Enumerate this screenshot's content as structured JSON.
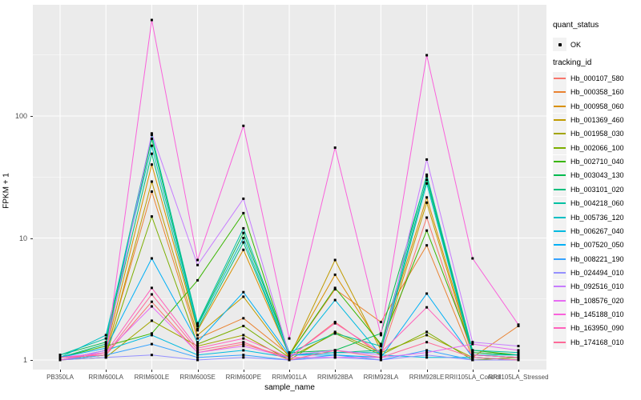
{
  "axes": {
    "y_title": "FPKM + 1",
    "x_title": "sample_name",
    "y_tick_labels": [
      "1",
      "10",
      "100"
    ]
  },
  "legend": {
    "quant_status_title": "quant_status",
    "quant_status_items": [
      {
        "label": "OK",
        "marker": "black-point"
      }
    ],
    "tracking_title": "tracking_id"
  },
  "style": {
    "panel_background": "#EBEBEB",
    "gridline_color": "#FFFFFF",
    "tick_label_color": "#4D4D4D",
    "point_color": "#000000",
    "legend_key_background": "#F2F2F2"
  },
  "chart_data": {
    "type": "line",
    "title": "",
    "xlabel": "sample_name",
    "ylabel": "FPKM + 1",
    "y_scale": "log10",
    "y_ticks": [
      1,
      10,
      100
    ],
    "ylim": [
      0.83,
      818
    ],
    "grid": "major-white, minor-white on grey panel",
    "legend_position": "right",
    "x_categories": [
      "PB350LA",
      "RRIM600LA",
      "RRIM600LE",
      "RRIM600SE",
      "RRIM600PE",
      "RRIM901LA",
      "RRIM928BA",
      "RRIM928LA",
      "RRIM928LE",
      "RRII105LA_Control",
      "RRII105LA_Stressed"
    ],
    "series": [
      {
        "name": "Hb_000107_580",
        "color": "#F8766D",
        "values": [
          1.05,
          1.1,
          3.0,
          1.15,
          1.35,
          1.05,
          2.05,
          1.1,
          14.7,
          1.1,
          1.05
        ]
      },
      {
        "name": "Hb_000358_160",
        "color": "#EA8331",
        "values": [
          1.0,
          1.15,
          24,
          1.5,
          2.2,
          1.1,
          3.8,
          2.05,
          8.7,
          1.05,
          1.9
        ]
      },
      {
        "name": "Hb_000958_060",
        "color": "#D89000",
        "values": [
          1.0,
          1.2,
          40,
          1.75,
          8.0,
          1.1,
          5.0,
          1.3,
          21.5,
          1.15,
          1.1
        ]
      },
      {
        "name": "Hb_001369_460",
        "color": "#C09B00",
        "values": [
          1.0,
          1.1,
          29,
          1.6,
          3.3,
          1.05,
          6.6,
          1.2,
          19.5,
          1.1,
          1.05
        ]
      },
      {
        "name": "Hb_001958_030",
        "color": "#A3A500",
        "values": [
          1.0,
          1.05,
          2.1,
          1.3,
          1.6,
          1.0,
          1.7,
          1.15,
          1.6,
          1.05,
          1.0
        ]
      },
      {
        "name": "Hb_002066_100",
        "color": "#7CAE00",
        "values": [
          1.0,
          1.1,
          15,
          1.35,
          1.9,
          1.05,
          1.65,
          1.1,
          1.7,
          1.0,
          1.05
        ]
      },
      {
        "name": "Hb_002710_040",
        "color": "#39B600",
        "values": [
          1.05,
          1.3,
          1.65,
          4.5,
          16,
          1.1,
          3.9,
          1.35,
          11.5,
          1.2,
          1.1
        ]
      },
      {
        "name": "Hb_003043_130",
        "color": "#00BB4E",
        "values": [
          1.1,
          1.4,
          65,
          1.95,
          11,
          1.15,
          1.2,
          1.65,
          32,
          1.15,
          1.1
        ]
      },
      {
        "name": "Hb_003101_020",
        "color": "#00BF7D",
        "values": [
          1.05,
          1.35,
          49,
          1.8,
          9.2,
          1.1,
          1.15,
          1.2,
          30,
          1.1,
          1.05
        ]
      },
      {
        "name": "Hb_004218_060",
        "color": "#00C1A3",
        "values": [
          1.1,
          1.5,
          70,
          2.0,
          12,
          1.15,
          1.65,
          1.3,
          33,
          1.2,
          1.15
        ]
      },
      {
        "name": "Hb_005736_120",
        "color": "#00BFC4",
        "values": [
          1.05,
          1.6,
          57,
          1.9,
          10,
          1.1,
          1.15,
          1.15,
          28,
          1.1,
          1.1
        ]
      },
      {
        "name": "Hb_006267_040",
        "color": "#00BAE0",
        "values": [
          1.0,
          1.2,
          1.6,
          1.1,
          1.2,
          1.05,
          3.1,
          1.1,
          1.05,
          1.05,
          1.0
        ]
      },
      {
        "name": "Hb_007520_050",
        "color": "#00B0F6",
        "values": [
          1.05,
          1.25,
          6.8,
          1.4,
          3.6,
          1.1,
          1.1,
          1.05,
          3.5,
          1.05,
          1.0
        ]
      },
      {
        "name": "Hb_008221_190",
        "color": "#35A2FF",
        "values": [
          1.0,
          1.1,
          1.35,
          1.05,
          1.1,
          1.0,
          1.1,
          1.0,
          1.2,
          1.0,
          1.0
        ]
      },
      {
        "name": "Hb_024494_010",
        "color": "#9590FF",
        "values": [
          1.0,
          1.05,
          1.1,
          1.0,
          1.05,
          1.0,
          1.05,
          1.0,
          1.1,
          1.0,
          1.0
        ]
      },
      {
        "name": "Hb_092516_010",
        "color": "#C77CFF",
        "values": [
          1.0,
          1.2,
          72,
          6.0,
          21,
          1.1,
          1.2,
          1.1,
          44,
          1.4,
          1.3
        ]
      },
      {
        "name": "Hb_108576_020",
        "color": "#E76BF3",
        "values": [
          1.05,
          1.15,
          2.75,
          1.15,
          1.3,
          1.05,
          1.05,
          1.05,
          1.15,
          1.35,
          1.2
        ]
      },
      {
        "name": "Hb_145188_010",
        "color": "#FA62DB",
        "values": [
          1.05,
          1.1,
          612,
          6.6,
          83,
          1.5,
          55,
          1.6,
          315,
          6.8,
          1.95
        ]
      },
      {
        "name": "Hb_163950_090",
        "color": "#FF62BC",
        "values": [
          1.0,
          1.15,
          3.9,
          1.25,
          1.5,
          1.05,
          2.0,
          1.15,
          2.7,
          1.1,
          1.05
        ]
      },
      {
        "name": "Hb_174168_010",
        "color": "#FF6A98",
        "values": [
          1.05,
          1.1,
          3.45,
          1.2,
          1.4,
          1.0,
          1.2,
          1.05,
          1.4,
          1.05,
          1.0
        ]
      }
    ]
  }
}
